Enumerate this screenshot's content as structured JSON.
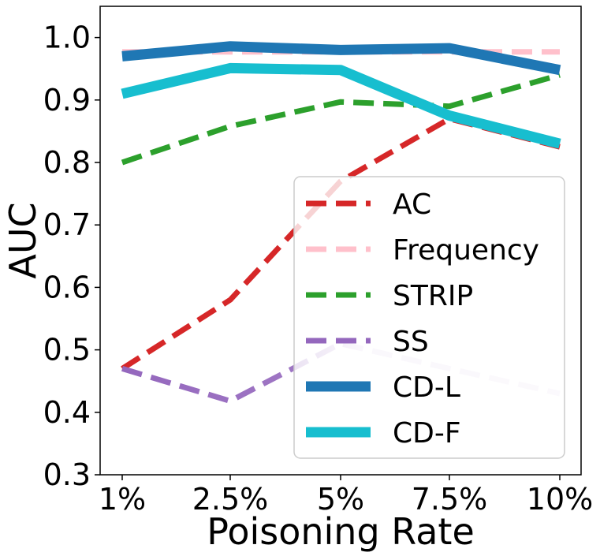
{
  "chart_data": {
    "type": "line",
    "categories": [
      "1%",
      "2.5%",
      "5%",
      "7.5%",
      "10%"
    ],
    "xlabel": "Poisoning Rate",
    "ylabel": "AUC",
    "ylim": [
      0.3,
      1.05
    ],
    "yticks": [
      "0.3",
      "0.4",
      "0.5",
      "0.6",
      "0.7",
      "0.8",
      "0.9",
      "1.0"
    ],
    "grid": false,
    "legend_position": "lower-right",
    "series": [
      {
        "name": "AC",
        "values": [
          0.47,
          0.58,
          0.77,
          0.87,
          0.825
        ],
        "color": "#d62728",
        "style": "dashed",
        "width": "thin"
      },
      {
        "name": "Frequency",
        "values": [
          0.977,
          0.977,
          0.977,
          0.977,
          0.977
        ],
        "color": "#ffc0cb",
        "style": "dashed",
        "width": "thin"
      },
      {
        "name": "STRIP",
        "values": [
          0.8,
          0.858,
          0.897,
          0.89,
          0.94
        ],
        "color": "#2ca02c",
        "style": "dashed",
        "width": "thin"
      },
      {
        "name": "SS",
        "values": [
          0.47,
          0.418,
          0.51,
          0.47,
          0.43
        ],
        "color": "#9467bd",
        "style": "dashed",
        "width": "thin",
        "fade": true
      },
      {
        "name": "CD-L",
        "values": [
          0.97,
          0.986,
          0.98,
          0.983,
          0.948
        ],
        "color": "#1f77b4",
        "style": "solid",
        "width": "thick"
      },
      {
        "name": "CD-F",
        "values": [
          0.91,
          0.951,
          0.948,
          0.875,
          0.83
        ],
        "color": "#17becf",
        "style": "solid",
        "width": "thick"
      }
    ]
  }
}
